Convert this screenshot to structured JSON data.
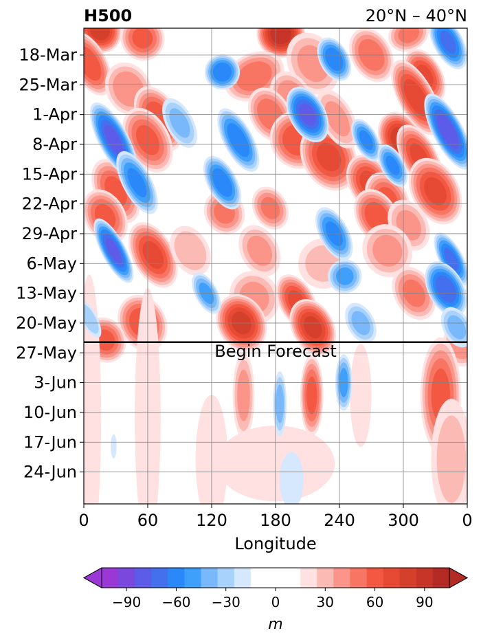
{
  "chart_data": {
    "type": "heatmap",
    "title_left": "H500",
    "title_right": "20°N – 40°N",
    "xlabel": "Longitude",
    "ylabel": "",
    "x_ticks": [
      "0",
      "60",
      "120",
      "180",
      "240",
      "300",
      "0"
    ],
    "x_tick_values": [
      0,
      60,
      120,
      180,
      240,
      300,
      360
    ],
    "xlim": [
      0,
      360
    ],
    "y_ticks": [
      "18-Mar",
      "25-Mar",
      "1-Apr",
      "8-Apr",
      "15-Apr",
      "22-Apr",
      "29-Apr",
      "6-May",
      "13-May",
      "20-May",
      "27-May",
      "3-Jun",
      "10-Jun",
      "17-Jun",
      "24-Jun"
    ],
    "y_tick_days": [
      0,
      7,
      14,
      21,
      28,
      35,
      42,
      49,
      56,
      63,
      70,
      77,
      84,
      91,
      98
    ],
    "ylim_days": [
      -6.3,
      105.5
    ],
    "forecast_start_day": 67.5,
    "forecast_label": "Begin Forecast",
    "grid": true,
    "colorbar": {
      "label": "m",
      "ticks": [
        "−90",
        "−60",
        "−30",
        "0",
        "30",
        "60",
        "90"
      ],
      "tick_values": [
        -90,
        -60,
        -30,
        0,
        30,
        60,
        90
      ],
      "range": [
        -105,
        105
      ],
      "levels": [
        -105,
        -95,
        -85,
        -75,
        -65,
        -55,
        -45,
        -35,
        -25,
        -15,
        15,
        25,
        35,
        45,
        55,
        65,
        75,
        85,
        95,
        105
      ],
      "colors": [
        "#9a38d6",
        "#7a48dc",
        "#5c5ce8",
        "#4470ee",
        "#2a88f8",
        "#3ea0fa",
        "#7ab8fc",
        "#a8d2fc",
        "#d6e8fe",
        "#ffffff",
        "#fee1e0",
        "#fcbab4",
        "#fb958a",
        "#f87563",
        "#f35842",
        "#e64a35",
        "#d5402c",
        "#c73428",
        "#b42a24"
      ],
      "extend": "both"
    },
    "anomaly_features": [
      {
        "lon": 15,
        "day": -6,
        "value": 85,
        "wlon": 14,
        "wday": 4
      },
      {
        "lon": 5,
        "day": 2,
        "value": 65,
        "wlon": 12,
        "wday": 6
      },
      {
        "lon": 55,
        "day": -4,
        "value": 60,
        "wlon": 15,
        "wday": 4
      },
      {
        "lon": 42,
        "day": 8,
        "value": 45,
        "wlon": 16,
        "wday": 5
      },
      {
        "lon": 130,
        "day": 4,
        "value": -65,
        "wlon": 12,
        "wday": 3
      },
      {
        "lon": 185,
        "day": -5,
        "value": 95,
        "wlon": 16,
        "wday": 4
      },
      {
        "lon": 160,
        "day": 5,
        "value": 55,
        "wlon": 22,
        "wday": 4
      },
      {
        "lon": 235,
        "day": 1,
        "value": -65,
        "wlon": 10,
        "wday": 4
      },
      {
        "lon": 215,
        "day": 2,
        "value": 40,
        "wlon": 18,
        "wday": 6
      },
      {
        "lon": 270,
        "day": 0,
        "value": 55,
        "wlon": 14,
        "wday": 5
      },
      {
        "lon": 342,
        "day": -3,
        "value": -70,
        "wlon": 10,
        "wday": 5
      },
      {
        "lon": 305,
        "day": -5,
        "value": 50,
        "wlon": 15,
        "wday": 3
      },
      {
        "lon": 320,
        "day": 5,
        "value": 70,
        "wlon": 12,
        "wday": 5
      },
      {
        "lon": 28,
        "day": 20,
        "value": -80,
        "wlon": 10,
        "wday": 7
      },
      {
        "lon": 70,
        "day": 15,
        "value": 65,
        "wlon": 14,
        "wday": 6
      },
      {
        "lon": 60,
        "day": 20,
        "value": 60,
        "wlon": 15,
        "wday": 6
      },
      {
        "lon": 90,
        "day": 16,
        "value": -40,
        "wlon": 10,
        "wday": 5
      },
      {
        "lon": 210,
        "day": 14,
        "value": -80,
        "wlon": 12,
        "wday": 5
      },
      {
        "lon": 195,
        "day": 10,
        "value": 45,
        "wlon": 14,
        "wday": 5
      },
      {
        "lon": 175,
        "day": 14,
        "value": 55,
        "wlon": 14,
        "wday": 5
      },
      {
        "lon": 200,
        "day": 20,
        "value": 65,
        "wlon": 18,
        "wday": 5
      },
      {
        "lon": 230,
        "day": 24,
        "value": 70,
        "wlon": 18,
        "wday": 6
      },
      {
        "lon": 145,
        "day": 20,
        "value": -65,
        "wlon": 10,
        "wday": 6
      },
      {
        "lon": 238,
        "day": 15,
        "value": 40,
        "wlon": 12,
        "wday": 6
      },
      {
        "lon": 265,
        "day": 20,
        "value": -60,
        "wlon": 8,
        "wday": 4
      },
      {
        "lon": 298,
        "day": 20,
        "value": 85,
        "wlon": 14,
        "wday": 5
      },
      {
        "lon": 315,
        "day": 24,
        "value": 70,
        "wlon": 12,
        "wday": 6
      },
      {
        "lon": 312,
        "day": 10,
        "value": 75,
        "wlon": 12,
        "wday": 7
      },
      {
        "lon": 342,
        "day": 18,
        "value": -85,
        "wlon": 10,
        "wday": 7
      },
      {
        "lon": 330,
        "day": 32,
        "value": 70,
        "wlon": 16,
        "wday": 6
      },
      {
        "lon": 50,
        "day": 30,
        "value": -60,
        "wlon": 10,
        "wday": 6
      },
      {
        "lon": 30,
        "day": 32,
        "value": 60,
        "wlon": 14,
        "wday": 6
      },
      {
        "lon": 130,
        "day": 30,
        "value": -65,
        "wlon": 10,
        "wday": 5
      },
      {
        "lon": 268,
        "day": 30,
        "value": 70,
        "wlon": 14,
        "wday": 5
      },
      {
        "lon": 285,
        "day": 34,
        "value": 60,
        "wlon": 14,
        "wday": 5
      },
      {
        "lon": 290,
        "day": 26,
        "value": -60,
        "wlon": 8,
        "wday": 4
      },
      {
        "lon": 20,
        "day": 38,
        "value": 60,
        "wlon": 14,
        "wday": 5
      },
      {
        "lon": 132,
        "day": 37,
        "value": 50,
        "wlon": 14,
        "wday": 4
      },
      {
        "lon": 175,
        "day": 36,
        "value": 50,
        "wlon": 12,
        "wday": 4
      },
      {
        "lon": 275,
        "day": 38,
        "value": 65,
        "wlon": 14,
        "wday": 5
      },
      {
        "lon": 305,
        "day": 40,
        "value": 40,
        "wlon": 14,
        "wday": 5
      },
      {
        "lon": 235,
        "day": 42,
        "value": -60,
        "wlon": 10,
        "wday": 5
      },
      {
        "lon": 28,
        "day": 46,
        "value": -80,
        "wlon": 8,
        "wday": 6
      },
      {
        "lon": 65,
        "day": 47,
        "value": 70,
        "wlon": 14,
        "wday": 6
      },
      {
        "lon": 100,
        "day": 46,
        "value": 35,
        "wlon": 14,
        "wday": 5
      },
      {
        "lon": 165,
        "day": 46,
        "value": 40,
        "wlon": 14,
        "wday": 5
      },
      {
        "lon": 225,
        "day": 49,
        "value": 30,
        "wlon": 20,
        "wday": 5
      },
      {
        "lon": 285,
        "day": 46,
        "value": 40,
        "wlon": 18,
        "wday": 5
      },
      {
        "lon": 245,
        "day": 52,
        "value": -50,
        "wlon": 12,
        "wday": 3
      },
      {
        "lon": 345,
        "day": 48,
        "value": -70,
        "wlon": 8,
        "wday": 5
      },
      {
        "lon": 340,
        "day": 55,
        "value": -75,
        "wlon": 12,
        "wday": 5
      },
      {
        "lon": 310,
        "day": 56,
        "value": 50,
        "wlon": 14,
        "wday": 5
      },
      {
        "lon": 115,
        "day": 56,
        "value": -50,
        "wlon": 8,
        "wday": 4
      },
      {
        "lon": 160,
        "day": 57,
        "value": 40,
        "wlon": 18,
        "wday": 5
      },
      {
        "lon": 200,
        "day": 58,
        "value": 70,
        "wlon": 12,
        "wday": 5
      },
      {
        "lon": 215,
        "day": 64,
        "value": 80,
        "wlon": 14,
        "wday": 5
      },
      {
        "lon": 148,
        "day": 63,
        "value": 80,
        "wlon": 16,
        "wday": 5
      },
      {
        "lon": 55,
        "day": 63,
        "value": 65,
        "wlon": 16,
        "wday": 5
      },
      {
        "lon": 20,
        "day": 67,
        "value": 60,
        "wlon": 14,
        "wday": 4
      },
      {
        "lon": 260,
        "day": 63,
        "value": -40,
        "wlon": 10,
        "wday": 4
      },
      {
        "lon": 350,
        "day": 64,
        "value": -40,
        "wlon": 10,
        "wday": 4
      },
      {
        "lon": 355,
        "day": 68,
        "value": 45,
        "wlon": 14,
        "wday": 4
      },
      {
        "lon": 5,
        "day": 62,
        "value": -35,
        "wlon": 6,
        "wday": 4
      },
      {
        "lon": 335,
        "day": 80,
        "value": 60,
        "wlon": 14,
        "wday": 10
      },
      {
        "lon": 345,
        "day": 95,
        "value": 30,
        "wlon": 16,
        "wday": 12
      },
      {
        "lon": 214,
        "day": 80,
        "value": 60,
        "wlon": 8,
        "wday": 7
      },
      {
        "lon": 244,
        "day": 77,
        "value": -50,
        "wlon": 6,
        "wday": 5
      },
      {
        "lon": 184,
        "day": 82,
        "value": -40,
        "wlon": 5,
        "wday": 6
      },
      {
        "lon": 150,
        "day": 80,
        "value": 40,
        "wlon": 8,
        "wday": 8
      },
      {
        "lon": 5,
        "day": 85,
        "value": 25,
        "wlon": 10,
        "wday": 30
      },
      {
        "lon": 60,
        "day": 85,
        "value": 20,
        "wlon": 12,
        "wday": 30
      },
      {
        "lon": 260,
        "day": 80,
        "value": 20,
        "wlon": 10,
        "wday": 12
      },
      {
        "lon": 180,
        "day": 96,
        "value": 25,
        "wlon": 50,
        "wday": 8
      },
      {
        "lon": 195,
        "day": 100,
        "value": -25,
        "wlon": 10,
        "wday": 6
      },
      {
        "lon": 120,
        "day": 95,
        "value": 20,
        "wlon": 15,
        "wday": 15
      },
      {
        "lon": 28,
        "day": 92,
        "value": -18,
        "wlon": 3,
        "wday": 3
      }
    ]
  }
}
